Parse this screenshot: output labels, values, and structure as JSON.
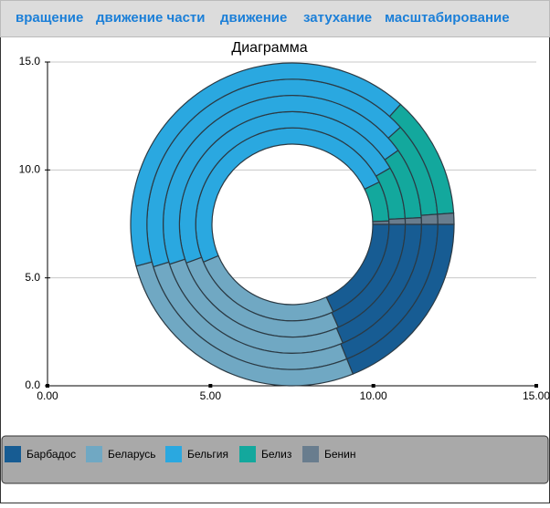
{
  "toolbar": {
    "items": [
      "вращение",
      "движение части",
      "движение",
      "затухание",
      "масштабирование"
    ]
  },
  "chart_data": {
    "type": "ring",
    "title": "Диаграмма",
    "series": [
      {
        "name": "Барбадос",
        "color": "#175c93",
        "values": [
          65,
          66,
          67,
          68,
          68
        ]
      },
      {
        "name": "Беларусь",
        "color": "#70a8c3",
        "values": [
          92,
          94,
          95,
          95,
          97
        ]
      },
      {
        "name": "Бельгия",
        "color": "#2aa8e0",
        "values": [
          177,
          170,
          163,
          155,
          147
        ]
      },
      {
        "name": "Белиз",
        "color": "#13a89d",
        "values": [
          24,
          27,
          32,
          38,
          44
        ]
      },
      {
        "name": "Бенин",
        "color": "#697d8e",
        "values": [
          2,
          3,
          3,
          4,
          4
        ]
      }
    ],
    "xlim": [
      0,
      15
    ],
    "xticks": [
      {
        "value": 0,
        "label": "0.00"
      },
      {
        "value": 5,
        "label": "5.00"
      },
      {
        "value": 10,
        "label": "10.00"
      },
      {
        "value": 15,
        "label": "15.00"
      }
    ],
    "ylim": [
      0,
      15
    ],
    "yticks": [
      {
        "value": 0,
        "label": "0.0"
      },
      {
        "value": 5,
        "label": "5.0"
      },
      {
        "value": 10,
        "label": "10.0"
      },
      {
        "value": 15,
        "label": "15.0"
      }
    ],
    "grid": true
  }
}
